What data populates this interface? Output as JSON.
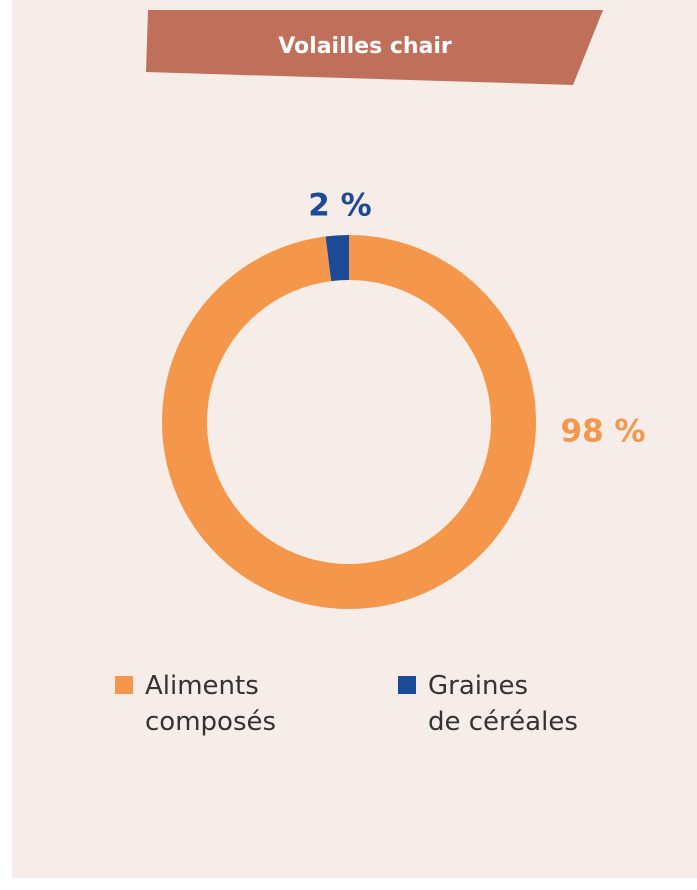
{
  "chart_data": {
    "type": "donut",
    "title": "Volailles chair",
    "categories": [
      "Aliments\ncomposés",
      "Graines\nde céréales"
    ],
    "values": [
      98,
      2
    ],
    "value_labels": [
      "98 %",
      "2 %"
    ],
    "colors": [
      "#f5974a",
      "#1b4a96"
    ]
  }
}
